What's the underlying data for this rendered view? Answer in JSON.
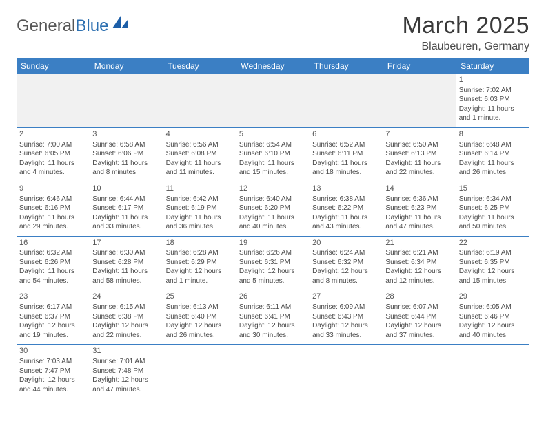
{
  "brand": {
    "part1": "General",
    "part2": "Blue"
  },
  "title": "March 2025",
  "location": "Blaubeuren, Germany",
  "header_bg": "#3b7fc4",
  "days": [
    "Sunday",
    "Monday",
    "Tuesday",
    "Wednesday",
    "Thursday",
    "Friday",
    "Saturday"
  ],
  "first_weekday": 6,
  "num_days": 31,
  "cells": {
    "1": {
      "sunrise": "Sunrise: 7:02 AM",
      "sunset": "Sunset: 6:03 PM",
      "dl1": "Daylight: 11 hours",
      "dl2": "and 1 minute."
    },
    "2": {
      "sunrise": "Sunrise: 7:00 AM",
      "sunset": "Sunset: 6:05 PM",
      "dl1": "Daylight: 11 hours",
      "dl2": "and 4 minutes."
    },
    "3": {
      "sunrise": "Sunrise: 6:58 AM",
      "sunset": "Sunset: 6:06 PM",
      "dl1": "Daylight: 11 hours",
      "dl2": "and 8 minutes."
    },
    "4": {
      "sunrise": "Sunrise: 6:56 AM",
      "sunset": "Sunset: 6:08 PM",
      "dl1": "Daylight: 11 hours",
      "dl2": "and 11 minutes."
    },
    "5": {
      "sunrise": "Sunrise: 6:54 AM",
      "sunset": "Sunset: 6:10 PM",
      "dl1": "Daylight: 11 hours",
      "dl2": "and 15 minutes."
    },
    "6": {
      "sunrise": "Sunrise: 6:52 AM",
      "sunset": "Sunset: 6:11 PM",
      "dl1": "Daylight: 11 hours",
      "dl2": "and 18 minutes."
    },
    "7": {
      "sunrise": "Sunrise: 6:50 AM",
      "sunset": "Sunset: 6:13 PM",
      "dl1": "Daylight: 11 hours",
      "dl2": "and 22 minutes."
    },
    "8": {
      "sunrise": "Sunrise: 6:48 AM",
      "sunset": "Sunset: 6:14 PM",
      "dl1": "Daylight: 11 hours",
      "dl2": "and 26 minutes."
    },
    "9": {
      "sunrise": "Sunrise: 6:46 AM",
      "sunset": "Sunset: 6:16 PM",
      "dl1": "Daylight: 11 hours",
      "dl2": "and 29 minutes."
    },
    "10": {
      "sunrise": "Sunrise: 6:44 AM",
      "sunset": "Sunset: 6:17 PM",
      "dl1": "Daylight: 11 hours",
      "dl2": "and 33 minutes."
    },
    "11": {
      "sunrise": "Sunrise: 6:42 AM",
      "sunset": "Sunset: 6:19 PM",
      "dl1": "Daylight: 11 hours",
      "dl2": "and 36 minutes."
    },
    "12": {
      "sunrise": "Sunrise: 6:40 AM",
      "sunset": "Sunset: 6:20 PM",
      "dl1": "Daylight: 11 hours",
      "dl2": "and 40 minutes."
    },
    "13": {
      "sunrise": "Sunrise: 6:38 AM",
      "sunset": "Sunset: 6:22 PM",
      "dl1": "Daylight: 11 hours",
      "dl2": "and 43 minutes."
    },
    "14": {
      "sunrise": "Sunrise: 6:36 AM",
      "sunset": "Sunset: 6:23 PM",
      "dl1": "Daylight: 11 hours",
      "dl2": "and 47 minutes."
    },
    "15": {
      "sunrise": "Sunrise: 6:34 AM",
      "sunset": "Sunset: 6:25 PM",
      "dl1": "Daylight: 11 hours",
      "dl2": "and 50 minutes."
    },
    "16": {
      "sunrise": "Sunrise: 6:32 AM",
      "sunset": "Sunset: 6:26 PM",
      "dl1": "Daylight: 11 hours",
      "dl2": "and 54 minutes."
    },
    "17": {
      "sunrise": "Sunrise: 6:30 AM",
      "sunset": "Sunset: 6:28 PM",
      "dl1": "Daylight: 11 hours",
      "dl2": "and 58 minutes."
    },
    "18": {
      "sunrise": "Sunrise: 6:28 AM",
      "sunset": "Sunset: 6:29 PM",
      "dl1": "Daylight: 12 hours",
      "dl2": "and 1 minute."
    },
    "19": {
      "sunrise": "Sunrise: 6:26 AM",
      "sunset": "Sunset: 6:31 PM",
      "dl1": "Daylight: 12 hours",
      "dl2": "and 5 minutes."
    },
    "20": {
      "sunrise": "Sunrise: 6:24 AM",
      "sunset": "Sunset: 6:32 PM",
      "dl1": "Daylight: 12 hours",
      "dl2": "and 8 minutes."
    },
    "21": {
      "sunrise": "Sunrise: 6:21 AM",
      "sunset": "Sunset: 6:34 PM",
      "dl1": "Daylight: 12 hours",
      "dl2": "and 12 minutes."
    },
    "22": {
      "sunrise": "Sunrise: 6:19 AM",
      "sunset": "Sunset: 6:35 PM",
      "dl1": "Daylight: 12 hours",
      "dl2": "and 15 minutes."
    },
    "23": {
      "sunrise": "Sunrise: 6:17 AM",
      "sunset": "Sunset: 6:37 PM",
      "dl1": "Daylight: 12 hours",
      "dl2": "and 19 minutes."
    },
    "24": {
      "sunrise": "Sunrise: 6:15 AM",
      "sunset": "Sunset: 6:38 PM",
      "dl1": "Daylight: 12 hours",
      "dl2": "and 22 minutes."
    },
    "25": {
      "sunrise": "Sunrise: 6:13 AM",
      "sunset": "Sunset: 6:40 PM",
      "dl1": "Daylight: 12 hours",
      "dl2": "and 26 minutes."
    },
    "26": {
      "sunrise": "Sunrise: 6:11 AM",
      "sunset": "Sunset: 6:41 PM",
      "dl1": "Daylight: 12 hours",
      "dl2": "and 30 minutes."
    },
    "27": {
      "sunrise": "Sunrise: 6:09 AM",
      "sunset": "Sunset: 6:43 PM",
      "dl1": "Daylight: 12 hours",
      "dl2": "and 33 minutes."
    },
    "28": {
      "sunrise": "Sunrise: 6:07 AM",
      "sunset": "Sunset: 6:44 PM",
      "dl1": "Daylight: 12 hours",
      "dl2": "and 37 minutes."
    },
    "29": {
      "sunrise": "Sunrise: 6:05 AM",
      "sunset": "Sunset: 6:46 PM",
      "dl1": "Daylight: 12 hours",
      "dl2": "and 40 minutes."
    },
    "30": {
      "sunrise": "Sunrise: 7:03 AM",
      "sunset": "Sunset: 7:47 PM",
      "dl1": "Daylight: 12 hours",
      "dl2": "and 44 minutes."
    },
    "31": {
      "sunrise": "Sunrise: 7:01 AM",
      "sunset": "Sunset: 7:48 PM",
      "dl1": "Daylight: 12 hours",
      "dl2": "and 47 minutes."
    }
  }
}
